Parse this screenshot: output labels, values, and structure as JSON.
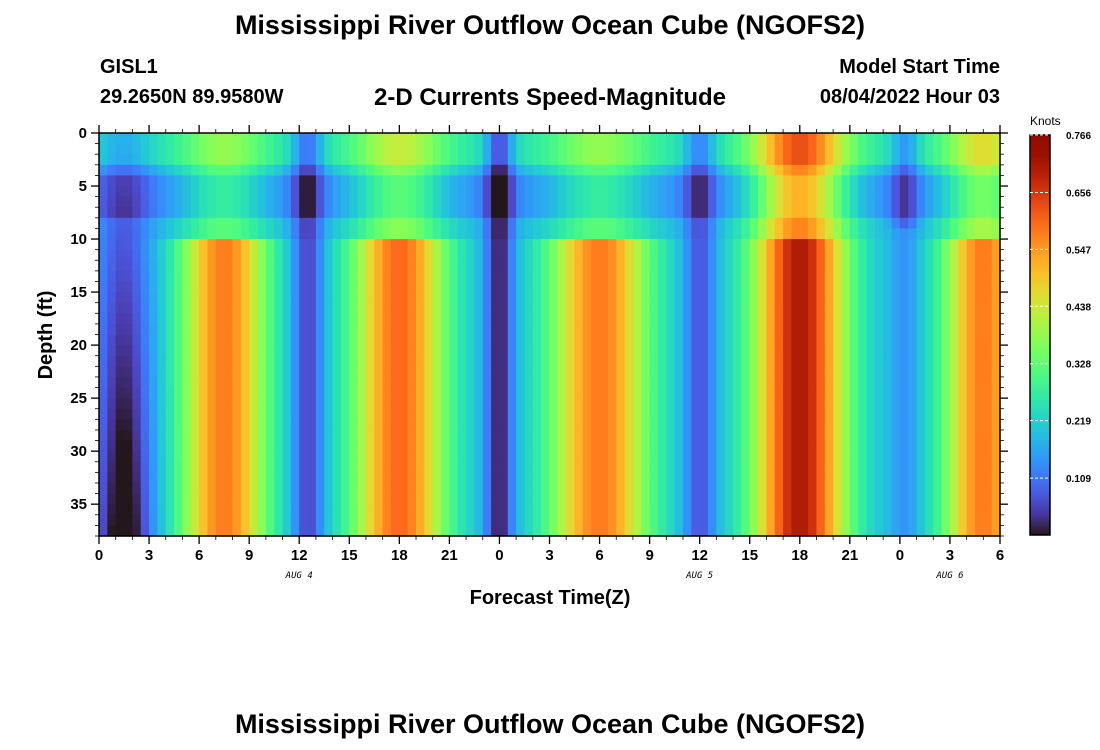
{
  "header": {
    "title": "Mississippi River Outflow Ocean Cube (NGOFS2)",
    "station_id": "GISL1",
    "station_coords": "29.2650N  89.9580W",
    "subtitle": "2-D Currents Speed-Magnitude",
    "model_start_label": "Model Start Time",
    "model_start_value": "08/04/2022 Hour 03"
  },
  "footer": {
    "title": "Mississippi River Outflow Ocean Cube (NGOFS2)"
  },
  "chart_data": {
    "type": "heatmap",
    "title": "2-D Currents Speed-Magnitude",
    "xlabel": "Forecast Time(Z)",
    "ylabel": "Depth (ft)",
    "xlim": [
      0,
      54
    ],
    "ylim": [
      0,
      38
    ],
    "y_inverted": true,
    "x_ticks": [
      0,
      3,
      6,
      9,
      12,
      15,
      18,
      21,
      24,
      27,
      30,
      33,
      36,
      39,
      42,
      45,
      48,
      51,
      54
    ],
    "x_tick_labels": [
      "0",
      "3",
      "6",
      "9",
      "12",
      "15",
      "18",
      "21",
      "0",
      "3",
      "6",
      "9",
      "12",
      "15",
      "18",
      "21",
      "0",
      "3",
      "6"
    ],
    "y_ticks": [
      0,
      5,
      10,
      15,
      20,
      25,
      30,
      35
    ],
    "y_tick_labels": [
      "0",
      "5",
      "10",
      "15",
      "20",
      "25",
      "30",
      "35"
    ],
    "day_labels": [
      {
        "x": 12,
        "label": "AUG 4"
      },
      {
        "x": 36,
        "label": "AUG 5"
      },
      {
        "x": 51,
        "label": "AUG 6"
      }
    ],
    "colorbar": {
      "title": "Knots",
      "min": 0.0,
      "max": 0.766,
      "tick_values": [
        0.109,
        0.219,
        0.328,
        0.438,
        0.547,
        0.656,
        0.766
      ],
      "tick_labels": [
        "0.109",
        "0.219",
        "0.328",
        "0.438",
        "0.547",
        "0.656",
        "0.766"
      ],
      "colormap": "turbo"
    },
    "field_summary": {
      "surface_layer_depth_ft": [
        0,
        10
      ],
      "features": [
        {
          "time_range": [
            0,
            3.5
          ],
          "depth_range": [
            0,
            38
          ],
          "speed_knots": 0.06
        },
        {
          "time_range": [
            6,
            10
          ],
          "depth_range": [
            11,
            18
          ],
          "speed_knots": 0.57
        },
        {
          "time_range": [
            12,
            13
          ],
          "depth_range": [
            0,
            38
          ],
          "speed_knots": 0.14
        },
        {
          "time_range": [
            15,
            21
          ],
          "depth_range": [
            11,
            38
          ],
          "speed_knots": 0.58
        },
        {
          "time_range": [
            23.5,
            24.5
          ],
          "depth_range": [
            0,
            38
          ],
          "speed_knots": 0.03
        },
        {
          "time_range": [
            27,
            33
          ],
          "depth_range": [
            11,
            16
          ],
          "speed_knots": 0.57
        },
        {
          "time_range": [
            36,
            36.5
          ],
          "depth_range": [
            0,
            38
          ],
          "speed_knots": 0.14
        },
        {
          "time_range": [
            39,
            45
          ],
          "depth_range": [
            10,
            38
          ],
          "speed_knots": 0.7
        },
        {
          "time_range": [
            48,
            48.5
          ],
          "depth_range": [
            0,
            8
          ],
          "speed_knots": 0.12
        },
        {
          "time_range": [
            51,
            54
          ],
          "depth_range": [
            11,
            38
          ],
          "speed_knots": 0.58
        }
      ]
    }
  }
}
